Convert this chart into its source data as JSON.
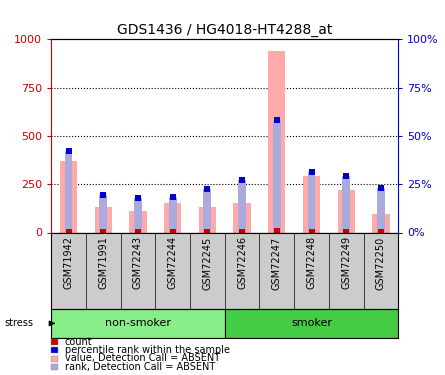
{
  "title": "GDS1436 / HG4018-HT4288_at",
  "samples": [
    "GSM71942",
    "GSM71991",
    "GSM72243",
    "GSM72244",
    "GSM72245",
    "GSM72246",
    "GSM72247",
    "GSM72248",
    "GSM72249",
    "GSM72250"
  ],
  "absent_values": [
    370,
    130,
    110,
    155,
    130,
    155,
    940,
    290,
    220,
    95
  ],
  "absent_ranks": [
    420,
    195,
    180,
    185,
    225,
    270,
    580,
    315,
    290,
    230
  ],
  "count_values": [
    5,
    3,
    2,
    3,
    2,
    2,
    8,
    4,
    3,
    1
  ],
  "percentile_ranks": [
    42,
    19.5,
    18,
    18.5,
    22.5,
    27,
    58,
    31.5,
    29,
    23
  ],
  "ylim_left": [
    0,
    1000
  ],
  "ylim_right": [
    0,
    100
  ],
  "yticks_left": [
    0,
    250,
    500,
    750,
    1000
  ],
  "yticks_right": [
    0,
    25,
    50,
    75,
    100
  ],
  "ytick_labels_left": [
    "0",
    "250",
    "500",
    "750",
    "1000"
  ],
  "ytick_labels_right": [
    "0%",
    "25%",
    "50%",
    "75%",
    "100%"
  ],
  "left_axis_color": "#cc0000",
  "right_axis_color": "#0000cc",
  "absent_bar_color": "#ffaaaa",
  "absent_rank_bar_color": "#aaaadd",
  "count_marker_color": "#cc0000",
  "percentile_marker_color": "#0000cc",
  "bg_sample_labels": "#cccccc",
  "non_smoker_color": "#88ee88",
  "smoker_color": "#44cc44",
  "stress_label": "stress",
  "non_smoker_label": "non-smoker",
  "smoker_label": "smoker",
  "legend_items": [
    {
      "label": "count",
      "color": "#cc0000"
    },
    {
      "label": "percentile rank within the sample",
      "color": "#0000cc"
    },
    {
      "label": "value, Detection Call = ABSENT",
      "color": "#ffaaaa"
    },
    {
      "label": "rank, Detection Call = ABSENT",
      "color": "#aaaadd"
    }
  ]
}
